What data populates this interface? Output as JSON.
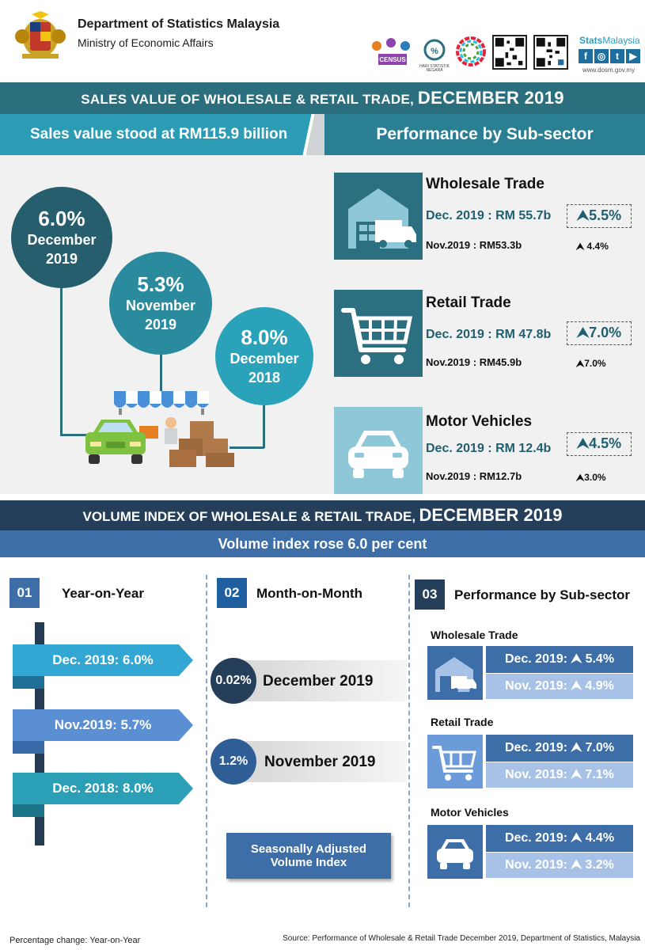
{
  "header": {
    "org_title": "Department of Statistics Malaysia",
    "org_subtitle": "Ministry of Economic Affairs",
    "census_label": "CENSUS",
    "harp_label": "HARI STATISTIK NEGARA",
    "social_brand_a": "Stats",
    "social_brand_b": "Malaysia",
    "social_icons": [
      "f",
      "◎",
      "t",
      "▶"
    ],
    "website": "www.dosm.gov.my"
  },
  "sales": {
    "title_small": "SALES VALUE OF WHOLESALE & RETAIL TRADE,",
    "title_big": "DECEMBER 2019",
    "headline": "Sales value stood at RM115.9 billion",
    "subsector_heading": "Performance by Sub-sector",
    "bubbles": [
      {
        "pct": "6.0%",
        "month": "December",
        "year": "2019"
      },
      {
        "pct": "5.3%",
        "month": "November",
        "year": "2019"
      },
      {
        "pct": "8.0%",
        "month": "December",
        "year": "2018"
      }
    ],
    "subsectors": [
      {
        "name": "Wholesale Trade",
        "dec_label": "Dec. 2019",
        "dec_value": ": RM 55.7b",
        "dec_pct": "5.5%",
        "nov_label": "Nov.2019",
        "nov_value": ": RM53.3b",
        "nov_pct": "4.4%"
      },
      {
        "name": "Retail Trade",
        "dec_label": "Dec. 2019",
        "dec_value": ": RM 47.8b",
        "dec_pct": "7.0%",
        "nov_label": "Nov.2019",
        "nov_value": ": RM45.9b",
        "nov_pct": "7.0%"
      },
      {
        "name": "Motor Vehicles",
        "dec_label": "Dec. 2019",
        "dec_value": ": RM 12.4b",
        "dec_pct": "4.5%",
        "nov_label": "Nov.2019",
        "nov_value": ": RM12.7b",
        "nov_pct": "3.0%"
      }
    ]
  },
  "volume": {
    "title_small": "VOLUME INDEX OF WHOLESALE & RETAIL TRADE,",
    "title_big": "DECEMBER 2019",
    "headline": "Volume index rose 6.0 per cent",
    "col1": {
      "num": "01",
      "title": "Year-on-Year",
      "items": [
        "Dec.  2019: 6.0%",
        "Nov.2019: 5.7%",
        "Dec. 2018: 8.0%"
      ]
    },
    "col2": {
      "num": "02",
      "title": "Month-on-Month",
      "items": [
        {
          "pct": "0.02%",
          "label": "December 2019"
        },
        {
          "pct": "1.2%",
          "label": "November 2019"
        }
      ],
      "sa_line1": "Seasonally Adjusted",
      "sa_line2": "Volume Index"
    },
    "col3": {
      "num": "03",
      "title": "Performance by Sub-sector",
      "items": [
        {
          "name": "Wholesale Trade",
          "dec": "Dec. 2019: ⮝ 5.4%",
          "nov": "Nov. 2019: ⮝ 4.9%"
        },
        {
          "name": "Retail Trade",
          "dec": "Dec. 2019: ⮝ 7.0%",
          "nov": "Nov. 2019: ⮝ 7.1%"
        },
        {
          "name": "Motor Vehicles",
          "dec": "Dec. 2019: ⮝ 4.4%",
          "nov": "Nov. 2019: ⮝ 3.2%"
        }
      ]
    }
  },
  "footer": {
    "left": "Percentage change: Year-on-Year",
    "right": "Source: Performance of Wholesale & Retail Trade December 2019, Department of Statistics,  Malaysia"
  },
  "colors": {
    "teal_dark": "#2b6f7f",
    "teal": "#2c9cb5",
    "navy": "#253f5a",
    "blue": "#3d6ea8"
  }
}
